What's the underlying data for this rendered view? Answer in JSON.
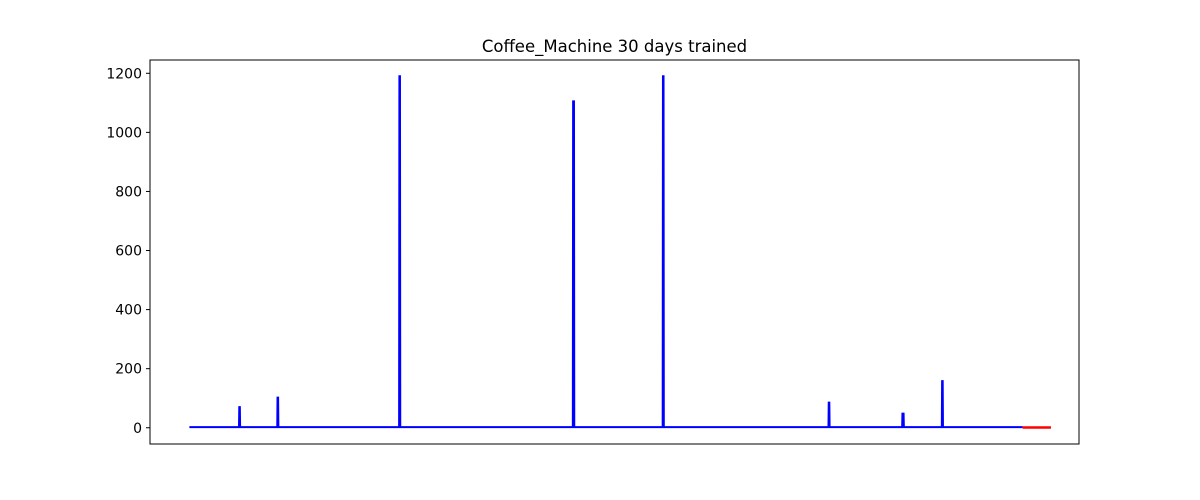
{
  "chart_data": {
    "type": "line",
    "title": "Coffee_Machine 30 days trained",
    "xlabel": "",
    "ylabel": "",
    "x_ticks_shown": false,
    "xlim": [
      0,
      30
    ],
    "ylim": [
      -55,
      1245
    ],
    "yticks": [
      0,
      200,
      400,
      600,
      800,
      1000,
      1200
    ],
    "grid": false,
    "series": [
      {
        "color": "#0000ff",
        "x": [
          0,
          1.75,
          1.76,
          1.78,
          1.79,
          3.1,
          3.11,
          3.13,
          3.14,
          7.4,
          7.41,
          7.43,
          7.44,
          13.53,
          13.54,
          13.57,
          13.58,
          16.7,
          16.71,
          16.73,
          16.74,
          22.55,
          22.56,
          22.58,
          22.59,
          25.15,
          25.16,
          25.2,
          25.21,
          26.55,
          26.56,
          26.58,
          26.59,
          29.4
        ],
        "y": [
          2,
          2,
          70,
          70,
          2,
          2,
          102,
          102,
          2,
          2,
          1190,
          1190,
          2,
          2,
          1105,
          1105,
          2,
          2,
          1190,
          1190,
          2,
          2,
          85,
          85,
          2,
          2,
          48,
          48,
          2,
          2,
          158,
          158,
          2,
          2
        ]
      },
      {
        "color": "#ff0000",
        "x": [
          29.4,
          30.4
        ],
        "y": [
          1,
          1
        ]
      }
    ]
  }
}
